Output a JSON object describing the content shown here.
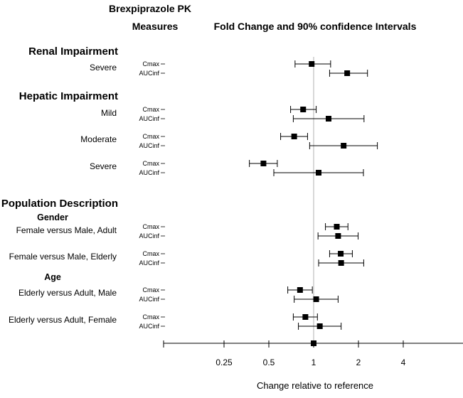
{
  "header": {
    "left_line1": "Brexpiprazole PK",
    "left_line2": "Measures",
    "right": "Fold Change and 90% confidence Intervals"
  },
  "chart_data": {
    "type": "forest",
    "title": "Fold Change and 90% confidence Intervals",
    "xlabel": "Change relative to reference",
    "x_scale": "log2",
    "xlim": [
      0.125,
      8
    ],
    "reference_line": 1,
    "x_ticks": [
      {
        "value": 0.25,
        "label": "0.25"
      },
      {
        "value": 0.5,
        "label": "0.5"
      },
      {
        "value": 1,
        "label": "1"
      },
      {
        "value": 2,
        "label": "2"
      },
      {
        "value": 4,
        "label": "4"
      }
    ],
    "sections": [
      {
        "kind": "section",
        "label": "Renal Impairment"
      },
      {
        "kind": "group",
        "label": "Severe",
        "rows": [
          {
            "measure": "Cmax",
            "estimate": 0.97,
            "lower": 0.75,
            "upper": 1.3
          },
          {
            "measure": "AUCinf",
            "estimate": 1.68,
            "lower": 1.28,
            "upper": 2.3
          }
        ]
      },
      {
        "kind": "section",
        "label": "Hepatic Impairment"
      },
      {
        "kind": "group",
        "label": "Mild",
        "rows": [
          {
            "measure": "Cmax",
            "estimate": 0.85,
            "lower": 0.7,
            "upper": 1.04
          },
          {
            "measure": "AUCinf",
            "estimate": 1.26,
            "lower": 0.73,
            "upper": 2.18
          }
        ]
      },
      {
        "kind": "group",
        "label": "Moderate",
        "rows": [
          {
            "measure": "Cmax",
            "estimate": 0.74,
            "lower": 0.6,
            "upper": 0.91
          },
          {
            "measure": "AUCinf",
            "estimate": 1.59,
            "lower": 0.94,
            "upper": 2.68
          }
        ]
      },
      {
        "kind": "group",
        "label": "Severe",
        "rows": [
          {
            "measure": "Cmax",
            "estimate": 0.46,
            "lower": 0.37,
            "upper": 0.57
          },
          {
            "measure": "AUCinf",
            "estimate": 1.08,
            "lower": 0.54,
            "upper": 2.16
          }
        ]
      },
      {
        "kind": "section",
        "label": "Population Description"
      },
      {
        "kind": "subsection",
        "label": "Gender"
      },
      {
        "kind": "group",
        "label": "Female versus Male, Adult",
        "rows": [
          {
            "measure": "Cmax",
            "estimate": 1.43,
            "lower": 1.2,
            "upper": 1.7
          },
          {
            "measure": "AUCinf",
            "estimate": 1.46,
            "lower": 1.07,
            "upper": 1.99
          }
        ]
      },
      {
        "kind": "group",
        "label": "Female versus Male, Elderly",
        "rows": [
          {
            "measure": "Cmax",
            "estimate": 1.52,
            "lower": 1.28,
            "upper": 1.82
          },
          {
            "measure": "AUCinf",
            "estimate": 1.53,
            "lower": 1.08,
            "upper": 2.17
          }
        ]
      },
      {
        "kind": "subsection",
        "label": "Age"
      },
      {
        "kind": "group",
        "label": "Elderly versus Adult, Male",
        "rows": [
          {
            "measure": "Cmax",
            "estimate": 0.81,
            "lower": 0.67,
            "upper": 0.98
          },
          {
            "measure": "AUCinf",
            "estimate": 1.04,
            "lower": 0.74,
            "upper": 1.46
          }
        ]
      },
      {
        "kind": "group",
        "label": "Elderly versus Adult, Female",
        "rows": [
          {
            "measure": "Cmax",
            "estimate": 0.88,
            "lower": 0.73,
            "upper": 1.06
          },
          {
            "measure": "AUCinf",
            "estimate": 1.1,
            "lower": 0.79,
            "upper": 1.53
          }
        ]
      }
    ]
  }
}
